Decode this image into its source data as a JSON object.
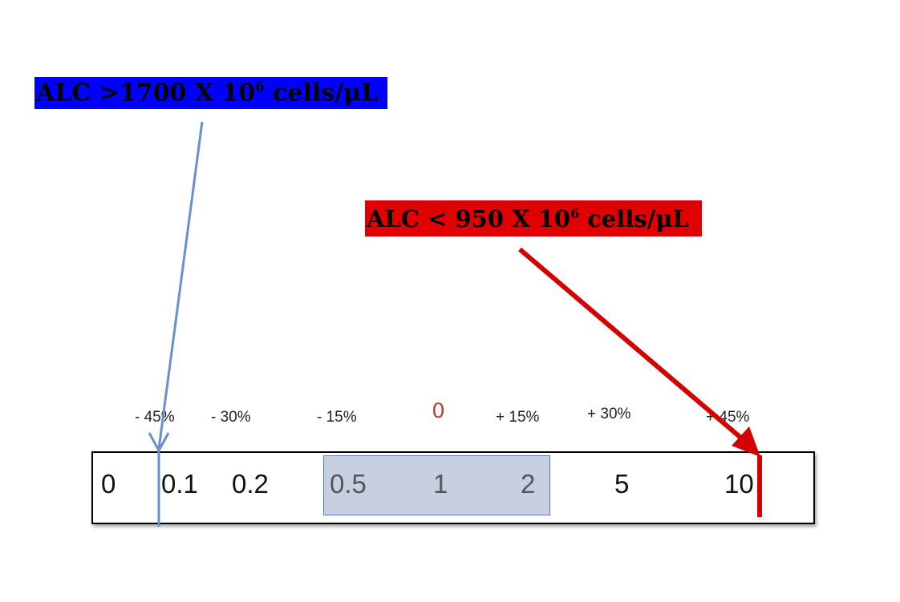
{
  "labels": {
    "alc_high": {
      "prefix": "ALC >1700 X  10",
      "exp": "6",
      "suffix": " cells/μL",
      "color": "#0000ff"
    },
    "alc_low": {
      "prefix": "ALC < 950 X 10",
      "exp": "6",
      "suffix": " cells/μL",
      "color": "#e00000"
    }
  },
  "percent_ticks": [
    "- 45%",
    "- 30%",
    "- 15%",
    "+ 15%",
    "+ 30%",
    "+ 45%"
  ],
  "center_tick": "0",
  "scale_values": [
    "0",
    "0.1",
    "0.2",
    "0.5",
    "1",
    "2",
    "5",
    "10"
  ],
  "colors": {
    "blue_arrow": "#6a8fd0",
    "red_arrow": "#d40000",
    "highlight": "#c7d0e0"
  }
}
